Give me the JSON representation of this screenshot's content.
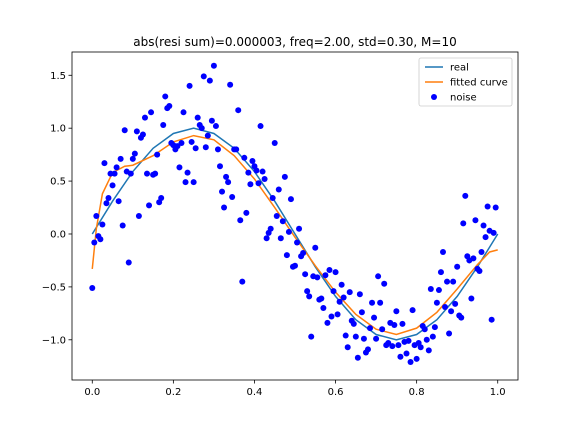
{
  "chart_data": {
    "type": "scatter",
    "title": "abs(resi sum)=0.000003, freq=2.00, std=0.30, M=10",
    "xlabel": "",
    "ylabel": "",
    "xlim": [
      -0.05,
      1.05
    ],
    "ylim": [
      -1.38,
      1.72
    ],
    "x_ticks": [
      0.0,
      0.2,
      0.4,
      0.6,
      0.8,
      1.0
    ],
    "x_tick_labels": [
      "0.0",
      "0.2",
      "0.4",
      "0.6",
      "0.8",
      "1.0"
    ],
    "y_ticks": [
      -1.0,
      -0.5,
      0.0,
      0.5,
      1.0,
      1.5
    ],
    "y_tick_labels": [
      "−1.0",
      "−0.5",
      "0.0",
      "0.5",
      "1.0",
      "1.5"
    ],
    "grid": false,
    "legend": {
      "placement": "top-right",
      "entries": [
        {
          "name": "real",
          "color": "#1f77b4",
          "marker": "line"
        },
        {
          "name": "fitted curve",
          "color": "#ff7f0e",
          "marker": "line"
        },
        {
          "name": "noise",
          "color": "#0000ff",
          "marker": "circle"
        }
      ]
    },
    "series": [
      {
        "name": "real",
        "color": "#1f77b4",
        "kind": "line",
        "x": [
          0.0,
          0.05,
          0.1,
          0.15,
          0.2,
          0.25,
          0.3,
          0.35,
          0.4,
          0.45,
          0.5,
          0.55,
          0.6,
          0.65,
          0.7,
          0.75,
          0.8,
          0.85,
          0.9,
          0.95,
          1.0
        ],
        "y": [
          0.0,
          0.31,
          0.59,
          0.81,
          0.95,
          1.0,
          0.95,
          0.81,
          0.59,
          0.31,
          0.0,
          -0.31,
          -0.59,
          -0.81,
          -0.95,
          -1.0,
          -0.95,
          -0.81,
          -0.59,
          -0.31,
          0.0
        ]
      },
      {
        "name": "fitted curve",
        "color": "#ff7f0e",
        "kind": "line",
        "x": [
          0.0,
          0.01,
          0.025,
          0.05,
          0.08,
          0.1,
          0.15,
          0.2,
          0.25,
          0.3,
          0.35,
          0.4,
          0.45,
          0.5,
          0.55,
          0.6,
          0.65,
          0.7,
          0.75,
          0.8,
          0.85,
          0.9,
          0.95,
          0.98,
          1.0
        ],
        "y": [
          -0.33,
          0.05,
          0.38,
          0.58,
          0.64,
          0.65,
          0.74,
          0.87,
          0.93,
          0.89,
          0.74,
          0.52,
          0.25,
          -0.03,
          -0.3,
          -0.55,
          -0.76,
          -0.9,
          -0.95,
          -0.89,
          -0.74,
          -0.52,
          -0.29,
          -0.17,
          -0.15
        ]
      },
      {
        "name": "noise",
        "color": "#0000ff",
        "kind": "scatter",
        "points": [
          [
            0.0,
            -0.51
          ],
          [
            0.005,
            -0.08
          ],
          [
            0.01,
            0.17
          ],
          [
            0.015,
            -0.02
          ],
          [
            0.02,
            -0.05
          ],
          [
            0.025,
            0.09
          ],
          [
            0.03,
            0.67
          ],
          [
            0.035,
            0.29
          ],
          [
            0.04,
            0.34
          ],
          [
            0.045,
            0.57
          ],
          [
            0.05,
            0.46
          ],
          [
            0.055,
            0.57
          ],
          [
            0.06,
            0.63
          ],
          [
            0.065,
            0.31
          ],
          [
            0.07,
            0.71
          ],
          [
            0.075,
            0.08
          ],
          [
            0.08,
            0.98
          ],
          [
            0.085,
            0.59
          ],
          [
            0.09,
            -0.27
          ],
          [
            0.095,
            0.57
          ],
          [
            0.1,
            0.71
          ],
          [
            0.105,
            0.76
          ],
          [
            0.11,
            0.97
          ],
          [
            0.115,
            0.17
          ],
          [
            0.12,
            0.91
          ],
          [
            0.125,
            0.94
          ],
          [
            0.13,
            1.1
          ],
          [
            0.135,
            0.57
          ],
          [
            0.14,
            0.27
          ],
          [
            0.145,
            1.15
          ],
          [
            0.15,
            0.56
          ],
          [
            0.155,
            0.57
          ],
          [
            0.16,
            0.75
          ],
          [
            0.165,
            0.3
          ],
          [
            0.17,
            0.34
          ],
          [
            0.175,
            1.03
          ],
          [
            0.18,
            1.3
          ],
          [
            0.185,
            1.19
          ],
          [
            0.19,
            1.21
          ],
          [
            0.195,
            0.86
          ],
          [
            0.2,
            0.84
          ],
          [
            0.205,
            0.8
          ],
          [
            0.21,
            0.83
          ],
          [
            0.215,
            0.63
          ],
          [
            0.22,
            0.86
          ],
          [
            0.225,
            1.15
          ],
          [
            0.23,
            0.49
          ],
          [
            0.235,
            0.58
          ],
          [
            0.24,
            1.4
          ],
          [
            0.245,
            0.87
          ],
          [
            0.25,
            0.49
          ],
          [
            0.255,
            0.81
          ],
          [
            0.26,
            1.1
          ],
          [
            0.265,
            1.03
          ],
          [
            0.27,
            1.0
          ],
          [
            0.275,
            1.49
          ],
          [
            0.28,
            0.82
          ],
          [
            0.285,
            0.93
          ],
          [
            0.29,
            1.45
          ],
          [
            0.295,
            1.07
          ],
          [
            0.3,
            1.59
          ],
          [
            0.305,
            1.02
          ],
          [
            0.31,
            0.8
          ],
          [
            0.315,
            0.64
          ],
          [
            0.32,
            0.4
          ],
          [
            0.325,
            0.25
          ],
          [
            0.33,
            0.54
          ],
          [
            0.335,
            0.49
          ],
          [
            0.34,
            1.41
          ],
          [
            0.345,
            0.35
          ],
          [
            0.35,
            0.8
          ],
          [
            0.355,
            0.8
          ],
          [
            0.36,
            1.17
          ],
          [
            0.365,
            0.13
          ],
          [
            0.37,
            -0.45
          ],
          [
            0.375,
            0.72
          ],
          [
            0.38,
            0.2
          ],
          [
            0.385,
            0.58
          ],
          [
            0.39,
            0.47
          ],
          [
            0.395,
            0.69
          ],
          [
            0.4,
            0.64
          ],
          [
            0.405,
            0.6
          ],
          [
            0.41,
            0.48
          ],
          [
            0.415,
            1.02
          ],
          [
            0.42,
            0.59
          ],
          [
            0.425,
            0.52
          ],
          [
            0.43,
            -0.04
          ],
          [
            0.435,
            0.01
          ],
          [
            0.44,
            0.05
          ],
          [
            0.445,
            0.34
          ],
          [
            0.45,
            0.86
          ],
          [
            0.455,
            0.17
          ],
          [
            0.46,
            0.42
          ],
          [
            0.465,
            -0.04
          ],
          [
            0.47,
            0.12
          ],
          [
            0.475,
            0.54
          ],
          [
            0.48,
            -0.2
          ],
          [
            0.485,
            0.02
          ],
          [
            0.49,
            0.33
          ],
          [
            0.495,
            -0.31
          ],
          [
            0.5,
            -0.3
          ],
          [
            0.505,
            -0.08
          ],
          [
            0.51,
            0.05
          ],
          [
            0.515,
            -0.21
          ],
          [
            0.52,
            -0.18
          ],
          [
            0.525,
            -0.38
          ],
          [
            0.53,
            -0.54
          ],
          [
            0.535,
            -0.59
          ],
          [
            0.54,
            -0.97
          ],
          [
            0.545,
            -0.4
          ],
          [
            0.55,
            -0.13
          ],
          [
            0.555,
            -0.41
          ],
          [
            0.56,
            -0.62
          ],
          [
            0.565,
            -0.61
          ],
          [
            0.57,
            -0.7
          ],
          [
            0.575,
            -0.39
          ],
          [
            0.58,
            -0.84
          ],
          [
            0.585,
            -0.34
          ],
          [
            0.59,
            -0.78
          ],
          [
            0.595,
            -0.54
          ],
          [
            0.6,
            -0.36
          ],
          [
            0.605,
            -0.76
          ],
          [
            0.61,
            -0.64
          ],
          [
            0.615,
            -0.48
          ],
          [
            0.62,
            -0.6
          ],
          [
            0.625,
            -0.96
          ],
          [
            0.63,
            -1.07
          ],
          [
            0.635,
            -0.55
          ],
          [
            0.64,
            -0.82
          ],
          [
            0.645,
            -0.85
          ],
          [
            0.65,
            -0.97
          ],
          [
            0.655,
            -1.17
          ],
          [
            0.66,
            -0.57
          ],
          [
            0.665,
            -0.74
          ],
          [
            0.67,
            -0.99
          ],
          [
            0.675,
            -1.12
          ],
          [
            0.68,
            -1.09
          ],
          [
            0.685,
            -0.89
          ],
          [
            0.69,
            -0.65
          ],
          [
            0.695,
            -0.79
          ],
          [
            0.7,
            -0.99
          ],
          [
            0.705,
            -0.4
          ],
          [
            0.71,
            -0.65
          ],
          [
            0.715,
            -0.9
          ],
          [
            0.72,
            -0.47
          ],
          [
            0.725,
            -1.05
          ],
          [
            0.73,
            -1.03
          ],
          [
            0.735,
            -0.84
          ],
          [
            0.74,
            -1.06
          ],
          [
            0.745,
            -0.86
          ],
          [
            0.75,
            -0.73
          ],
          [
            0.755,
            -1.05
          ],
          [
            0.76,
            -1.16
          ],
          [
            0.765,
            -0.85
          ],
          [
            0.77,
            -1.02
          ],
          [
            0.775,
            -1.13
          ],
          [
            0.78,
            -1.01
          ],
          [
            0.785,
            -1.21
          ],
          [
            0.79,
            -0.72
          ],
          [
            0.795,
            -1.05
          ],
          [
            0.8,
            -1.18
          ],
          [
            0.805,
            -1.03
          ],
          [
            0.81,
            -1.07
          ],
          [
            0.815,
            -0.87
          ],
          [
            0.82,
            -0.9
          ],
          [
            0.825,
            -1.0
          ],
          [
            0.83,
            -1.1
          ],
          [
            0.835,
            -0.52
          ],
          [
            0.84,
            -0.97
          ],
          [
            0.845,
            -0.88
          ],
          [
            0.85,
            -0.65
          ],
          [
            0.855,
            -0.53
          ],
          [
            0.86,
            -0.36
          ],
          [
            0.865,
            -0.17
          ],
          [
            0.87,
            -0.69
          ],
          [
            0.875,
            -0.45
          ],
          [
            0.88,
            -0.94
          ],
          [
            0.885,
            -0.73
          ],
          [
            0.89,
            -0.45
          ],
          [
            0.895,
            -0.66
          ],
          [
            0.9,
            -0.31
          ],
          [
            0.905,
            -0.77
          ],
          [
            0.91,
            -0.79
          ],
          [
            0.915,
            0.1
          ],
          [
            0.92,
            0.36
          ],
          [
            0.925,
            -0.21
          ],
          [
            0.93,
            -0.25
          ],
          [
            0.935,
            -0.61
          ],
          [
            0.94,
            -0.23
          ],
          [
            0.945,
            0.13
          ],
          [
            0.95,
            -0.33
          ],
          [
            0.955,
            -0.35
          ],
          [
            0.96,
            -0.17
          ],
          [
            0.965,
            0.08
          ],
          [
            0.97,
            -0.03
          ],
          [
            0.975,
            0.26
          ],
          [
            0.98,
            0.03
          ],
          [
            0.985,
            -0.81
          ],
          [
            0.99,
            0.01
          ],
          [
            0.995,
            0.25
          ]
        ]
      }
    ]
  }
}
